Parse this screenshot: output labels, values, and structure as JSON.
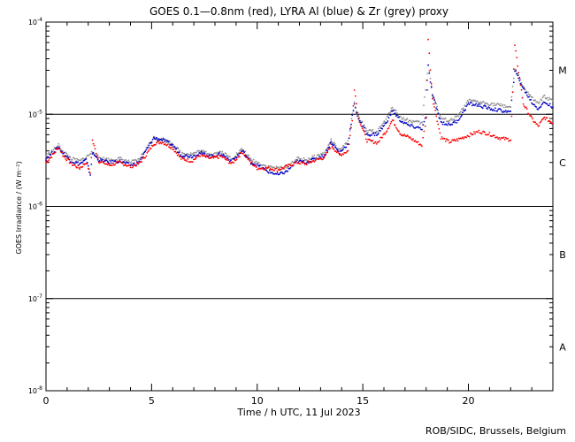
{
  "chart_data": {
    "type": "scatter",
    "title": "GOES 0.1—0.8nm (red), LYRA Al (blue) & Zr (grey) proxy",
    "xlabel": "Time / h UTC, 11 Jul 2023",
    "ylabel": "GOES Irradiance / (W m⁻²)",
    "xlim": [
      0,
      24
    ],
    "ylim": [
      1e-08,
      0.0001
    ],
    "y_scale": "log",
    "x_ticks": [
      0,
      5,
      10,
      15,
      20
    ],
    "y_tick_exponents": [
      -8,
      -7,
      -6,
      -5,
      -4
    ],
    "flare_class_lines": [
      1e-07,
      1e-06,
      1e-05
    ],
    "flare_classes": [
      {
        "label": "A",
        "level": 3e-08
      },
      {
        "label": "B",
        "level": 3e-07
      },
      {
        "label": "C",
        "level": 3e-06
      },
      {
        "label": "M",
        "level": 3e-05
      }
    ],
    "series": [
      {
        "name": "GOES 0.1-0.8nm",
        "color": "#ff0000",
        "points": [
          [
            0.0,
            3e-06
          ],
          [
            0.4,
            3.8e-06
          ],
          [
            0.6,
            4.4e-06
          ],
          [
            0.8,
            3.6e-06
          ],
          [
            1.2,
            2.9e-06
          ],
          [
            1.6,
            2.6e-06
          ],
          [
            1.9,
            3e-06
          ],
          [
            2.1,
            2.3e-06
          ],
          [
            2.2,
            5.2e-06
          ],
          [
            2.5,
            3.1e-06
          ],
          [
            3.0,
            2.8e-06
          ],
          [
            3.5,
            3e-06
          ],
          [
            4.0,
            2.7e-06
          ],
          [
            4.4,
            2.9e-06
          ],
          [
            4.7,
            3.5e-06
          ],
          [
            5.1,
            4.8e-06
          ],
          [
            5.5,
            5e-06
          ],
          [
            6.0,
            4.3e-06
          ],
          [
            6.4,
            3.3e-06
          ],
          [
            6.9,
            3.1e-06
          ],
          [
            7.3,
            3.6e-06
          ],
          [
            7.8,
            3.3e-06
          ],
          [
            8.3,
            3.5e-06
          ],
          [
            8.8,
            2.9e-06
          ],
          [
            9.3,
            3.9e-06
          ],
          [
            9.7,
            3e-06
          ],
          [
            10.0,
            2.6e-06
          ],
          [
            10.5,
            2.6e-06
          ],
          [
            11.0,
            2.5e-06
          ],
          [
            11.4,
            2.7e-06
          ],
          [
            11.9,
            3e-06
          ],
          [
            12.3,
            2.9e-06
          ],
          [
            12.8,
            3.2e-06
          ],
          [
            13.2,
            3.4e-06
          ],
          [
            13.5,
            4.6e-06
          ],
          [
            13.9,
            3.6e-06
          ],
          [
            14.3,
            4e-06
          ],
          [
            14.5,
            8.5e-06
          ],
          [
            14.6,
            1.9e-05
          ],
          [
            14.8,
            9e-06
          ],
          [
            15.2,
            5.2e-06
          ],
          [
            15.7,
            4.9e-06
          ],
          [
            16.1,
            6.5e-06
          ],
          [
            16.4,
            8.6e-06
          ],
          [
            16.8,
            6.1e-06
          ],
          [
            17.2,
            5.6e-06
          ],
          [
            17.8,
            4.6e-06
          ],
          [
            18.0,
            9e-06
          ],
          [
            18.1,
            6.5e-05
          ],
          [
            18.3,
            1.5e-05
          ],
          [
            18.7,
            5.6e-06
          ],
          [
            19.1,
            5e-06
          ],
          [
            19.5,
            5.3e-06
          ],
          [
            20.0,
            5.9e-06
          ],
          [
            20.5,
            6.5e-06
          ],
          [
            21.0,
            6.1e-06
          ],
          [
            21.5,
            5.5e-06
          ],
          [
            22.0,
            5.3e-06
          ],
          [
            22.2,
            5.5e-05
          ],
          [
            22.6,
            1.3e-05
          ],
          [
            23.0,
            9e-06
          ],
          [
            23.3,
            7.4e-06
          ],
          [
            23.6,
            9.2e-06
          ],
          [
            24.0,
            8e-06
          ]
        ]
      },
      {
        "name": "LYRA Al proxy",
        "color": "#0000c8",
        "points": [
          [
            0.0,
            3.3e-06
          ],
          [
            0.4,
            4e-06
          ],
          [
            0.6,
            4.4e-06
          ],
          [
            0.8,
            3.8e-06
          ],
          [
            1.2,
            3.1e-06
          ],
          [
            1.6,
            2.9e-06
          ],
          [
            1.9,
            3.2e-06
          ],
          [
            2.1,
            2.2e-06
          ],
          [
            2.2,
            3.8e-06
          ],
          [
            2.5,
            3.2e-06
          ],
          [
            3.0,
            3e-06
          ],
          [
            3.5,
            3.1e-06
          ],
          [
            4.0,
            2.8e-06
          ],
          [
            4.4,
            3e-06
          ],
          [
            4.7,
            3.9e-06
          ],
          [
            5.1,
            5.5e-06
          ],
          [
            5.5,
            5.3e-06
          ],
          [
            6.0,
            4.6e-06
          ],
          [
            6.4,
            3.6e-06
          ],
          [
            6.9,
            3.5e-06
          ],
          [
            7.3,
            3.8e-06
          ],
          [
            7.8,
            3.5e-06
          ],
          [
            8.3,
            3.7e-06
          ],
          [
            8.8,
            3.1e-06
          ],
          [
            9.3,
            4e-06
          ],
          [
            9.7,
            3e-06
          ],
          [
            10.0,
            2.8e-06
          ],
          [
            10.5,
            2.4e-06
          ],
          [
            11.0,
            2.2e-06
          ],
          [
            11.4,
            2.4e-06
          ],
          [
            11.9,
            3.1e-06
          ],
          [
            12.3,
            3e-06
          ],
          [
            12.8,
            3.3e-06
          ],
          [
            13.2,
            3.6e-06
          ],
          [
            13.5,
            5e-06
          ],
          [
            13.9,
            3.8e-06
          ],
          [
            14.3,
            4.8e-06
          ],
          [
            14.5,
            9.5e-06
          ],
          [
            14.6,
            1.25e-05
          ],
          [
            14.8,
            9e-06
          ],
          [
            15.2,
            6e-06
          ],
          [
            15.7,
            6.1e-06
          ],
          [
            16.1,
            8e-06
          ],
          [
            16.4,
            1.1e-05
          ],
          [
            16.8,
            8.5e-06
          ],
          [
            17.2,
            7.5e-06
          ],
          [
            17.8,
            7e-06
          ],
          [
            18.0,
            9.5e-06
          ],
          [
            18.1,
            3.3e-05
          ],
          [
            18.3,
            1.6e-05
          ],
          [
            18.7,
            8.2e-06
          ],
          [
            19.1,
            7.7e-06
          ],
          [
            19.5,
            8.5e-06
          ],
          [
            20.0,
            1.3e-05
          ],
          [
            20.5,
            1.25e-05
          ],
          [
            21.0,
            1.15e-05
          ],
          [
            21.5,
            1.1e-05
          ],
          [
            22.0,
            1.05e-05
          ],
          [
            22.2,
            3e-05
          ],
          [
            22.6,
            1.9e-05
          ],
          [
            23.0,
            1.35e-05
          ],
          [
            23.3,
            1.15e-05
          ],
          [
            23.6,
            1.35e-05
          ],
          [
            24.0,
            1.2e-05
          ]
        ]
      },
      {
        "name": "LYRA Zr proxy",
        "color": "#909090",
        "points": [
          [
            0.0,
            3.5e-06
          ],
          [
            0.4,
            4.2e-06
          ],
          [
            0.6,
            4.6e-06
          ],
          [
            0.8,
            4e-06
          ],
          [
            1.2,
            3.3e-06
          ],
          [
            1.6,
            3.1e-06
          ],
          [
            1.9,
            3.4e-06
          ],
          [
            2.2,
            3.9e-06
          ],
          [
            2.5,
            3.4e-06
          ],
          [
            3.0,
            3.2e-06
          ],
          [
            3.5,
            3.3e-06
          ],
          [
            4.0,
            3e-06
          ],
          [
            4.4,
            3.2e-06
          ],
          [
            4.7,
            4.1e-06
          ],
          [
            5.1,
            5.6e-06
          ],
          [
            5.5,
            5.4e-06
          ],
          [
            6.0,
            4.8e-06
          ],
          [
            6.4,
            3.8e-06
          ],
          [
            6.9,
            3.7e-06
          ],
          [
            7.3,
            4e-06
          ],
          [
            7.8,
            3.7e-06
          ],
          [
            8.3,
            3.9e-06
          ],
          [
            8.8,
            3.3e-06
          ],
          [
            9.3,
            4.2e-06
          ],
          [
            9.7,
            3.2e-06
          ],
          [
            10.0,
            3e-06
          ],
          [
            10.5,
            2.7e-06
          ],
          [
            11.0,
            2.6e-06
          ],
          [
            11.4,
            2.7e-06
          ],
          [
            11.9,
            3.3e-06
          ],
          [
            12.3,
            3.2e-06
          ],
          [
            12.8,
            3.5e-06
          ],
          [
            13.2,
            3.8e-06
          ],
          [
            13.5,
            5.2e-06
          ],
          [
            13.9,
            4e-06
          ],
          [
            14.3,
            5e-06
          ],
          [
            14.6,
            1.3e-05
          ],
          [
            14.8,
            9.5e-06
          ],
          [
            15.2,
            6.5e-06
          ],
          [
            15.7,
            6.6e-06
          ],
          [
            16.1,
            8.7e-06
          ],
          [
            16.4,
            1.2e-05
          ],
          [
            16.8,
            9.2e-06
          ],
          [
            17.2,
            8.5e-06
          ],
          [
            17.8,
            8e-06
          ],
          [
            18.1,
            3.5e-05
          ],
          [
            18.3,
            1.7e-05
          ],
          [
            18.7,
            9e-06
          ],
          [
            19.1,
            8.5e-06
          ],
          [
            19.5,
            9.5e-06
          ],
          [
            20.0,
            1.4e-05
          ],
          [
            20.5,
            1.35e-05
          ],
          [
            21.0,
            1.3e-05
          ],
          [
            21.5,
            1.25e-05
          ],
          [
            22.0,
            1.2e-05
          ],
          [
            22.2,
            3.1e-05
          ],
          [
            22.6,
            2e-05
          ],
          [
            23.0,
            1.5e-05
          ],
          [
            23.3,
            1.3e-05
          ],
          [
            23.6,
            1.55e-05
          ],
          [
            24.0,
            1.4e-05
          ]
        ]
      }
    ]
  },
  "footer": {
    "credit": "ROB/SIDC, Brussels, Belgium"
  }
}
